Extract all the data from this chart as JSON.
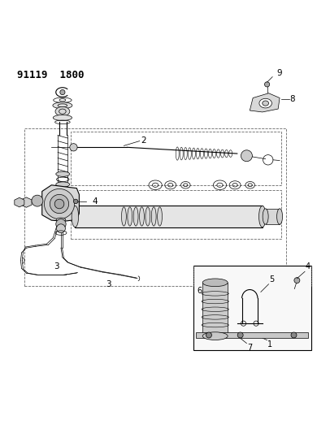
{
  "title_code": "91119  1800",
  "bg_color": "#ffffff",
  "line_color": "#000000",
  "fig_width": 3.9,
  "fig_height": 5.33,
  "dpi": 100,
  "title_fontsize": 9,
  "label_fontsize": 7.5
}
